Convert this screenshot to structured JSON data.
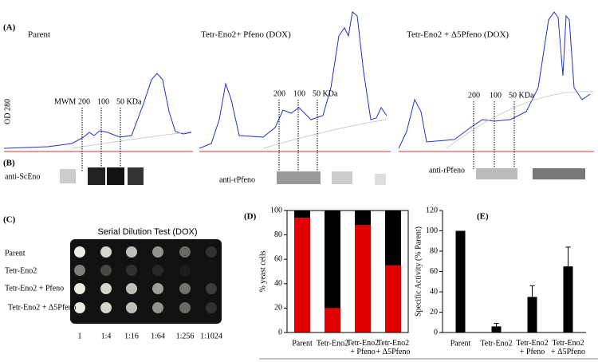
{
  "panel_a": {
    "label": "(A)",
    "y_label": "OD 280",
    "traces": [
      {
        "title": "Parent",
        "markers": [
          "MWM",
          "200",
          "100",
          "50 KDa"
        ]
      },
      {
        "title": "Tetr-Eno2+ Pfeno (DOX)",
        "markers": [
          "200",
          "100",
          "50 KDa"
        ]
      },
      {
        "title": "Tetr-Eno2 + Δ5Pfeno (DOX)",
        "markers": [
          "200",
          "100",
          "50 KDa"
        ]
      }
    ]
  },
  "panel_b": {
    "label": "(B)",
    "antibodies": [
      "anti-ScEno",
      "anti-rPfeno",
      "anti-rPfeno"
    ]
  },
  "panel_c": {
    "label": "(C)",
    "title": "Serial Dilution Test (DOX)",
    "rows": [
      "Parent",
      "Tetr-Eno2",
      "Tetr-Eno2 + Pfeno",
      "Tetr-Eno2 + Δ5Pfeno"
    ],
    "columns": [
      "1",
      "1:4",
      "1:16",
      "1:64",
      "1:256",
      "1:1024"
    ]
  },
  "chart_data": [
    {
      "type": "stacked_bar",
      "panel": "(D)",
      "y_label": "% yeast cells",
      "categories": [
        "Parent",
        "Tetr-Eno2",
        "Tetr-Eno2\n+ Pfeno",
        "Tetr-Eno2\n+ Δ5Pfeno"
      ],
      "series": [
        {
          "color": "#e00000",
          "values": [
            94,
            20,
            88,
            55
          ]
        },
        {
          "color": "#000000",
          "values": [
            6,
            80,
            12,
            45
          ]
        }
      ],
      "ylim": [
        0,
        100
      ],
      "yticks": [
        0,
        20,
        40,
        60,
        80,
        100
      ]
    },
    {
      "type": "bar",
      "panel": "(E)",
      "y_label": "Specific Activity (% Parent)",
      "categories": [
        "Parent",
        "Tetr-Eno2",
        "Tetr-Eno2\n+ Pfeno",
        "Tetr-Eno2\n+ Δ5Pfeno"
      ],
      "values": [
        100,
        6,
        35,
        65
      ],
      "errors": [
        0,
        3,
        11,
        19
      ],
      "color": "#000000",
      "ylim": [
        0,
        120
      ],
      "yticks": [
        0,
        20,
        40,
        60,
        80,
        100,
        120
      ]
    }
  ]
}
